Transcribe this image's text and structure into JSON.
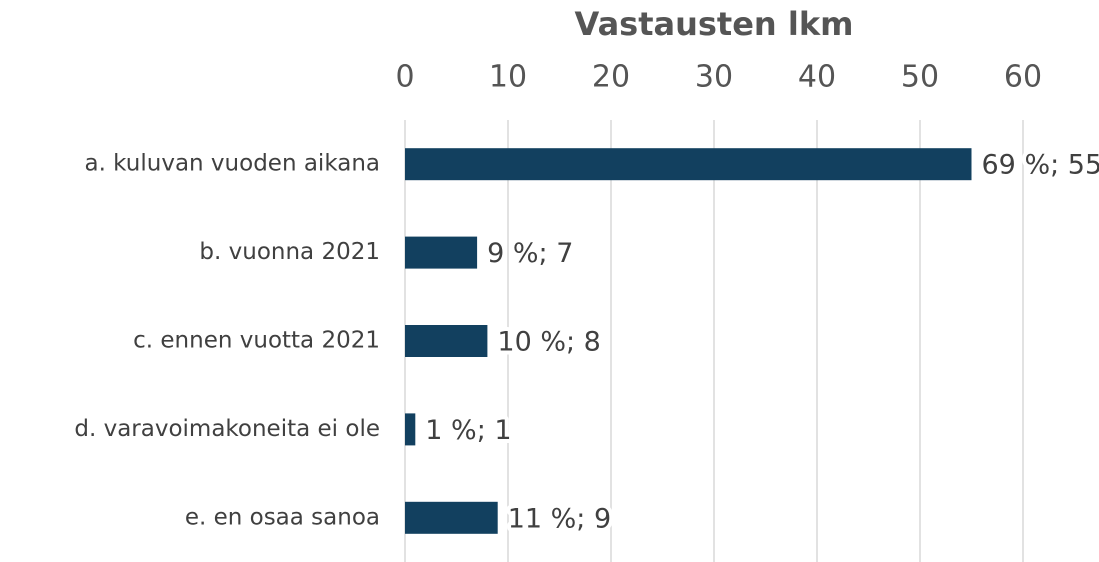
{
  "chart_data": {
    "type": "bar",
    "orientation": "horizontal",
    "title": "Vastausten lkm",
    "categories": [
      "a. kuluvan vuoden aikana",
      "b. vuonna 2021",
      "c. ennen vuotta 2021",
      "d. varavoimakoneita ei ole",
      "e. en osaa sanoa"
    ],
    "values": [
      55,
      7,
      8,
      1,
      9
    ],
    "value_labels": [
      "69 %; 55",
      "9 %; 7",
      "10 %; 8",
      "1 %; 1",
      "11 %; 9"
    ],
    "color": "#12405f",
    "xlim": [
      0,
      60
    ],
    "xticks": [
      0,
      10,
      20,
      30,
      40,
      50,
      60
    ],
    "grid": true
  }
}
